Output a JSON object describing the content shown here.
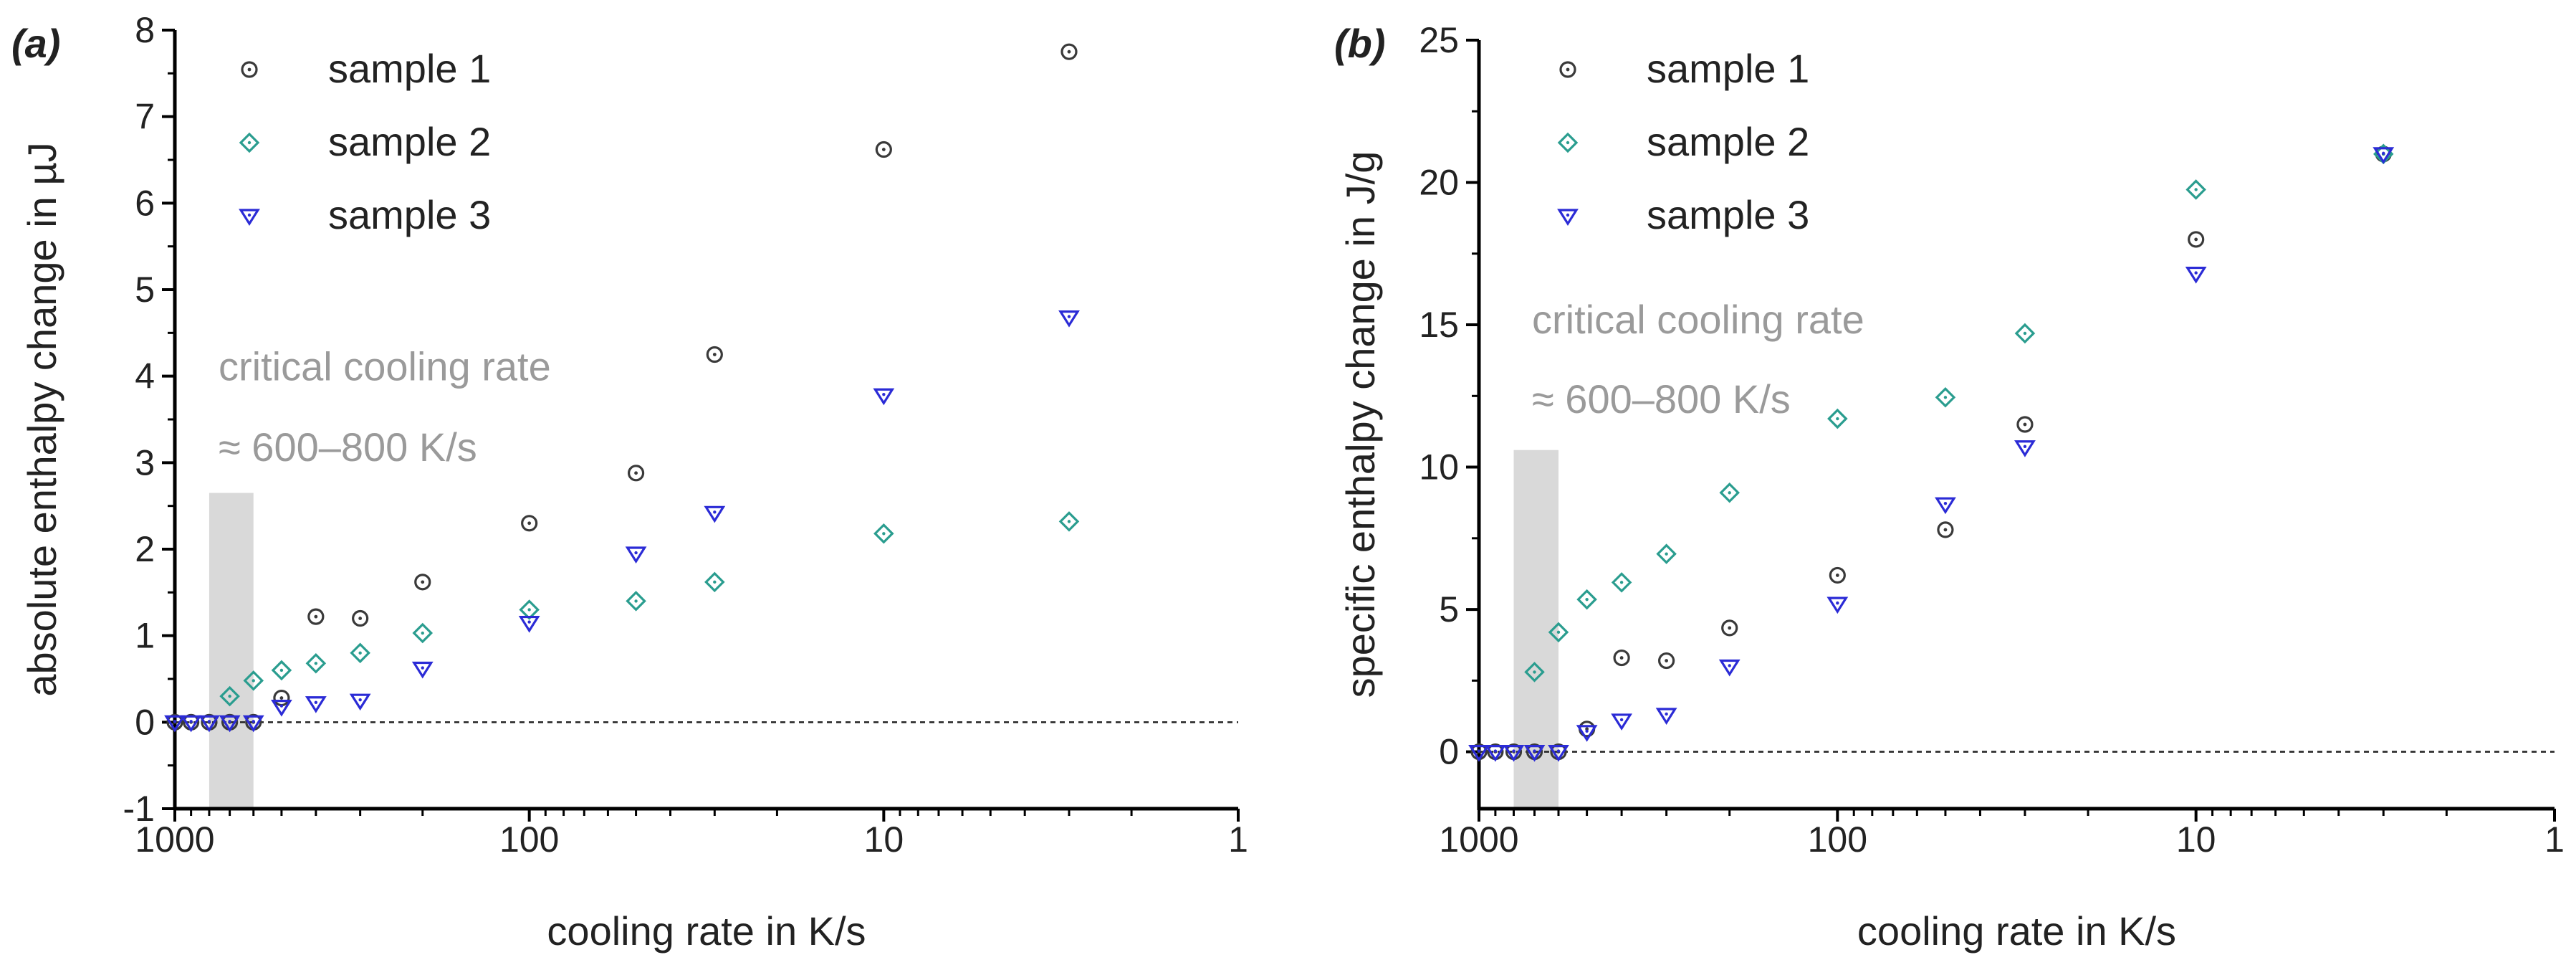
{
  "colors": {
    "sample_1": "#3a3a3a",
    "sample_2": "#2a9d8f",
    "sample_3": "#2b2bd6",
    "band": "#d9d9d9",
    "axis": "#000000",
    "annotation": "#9a9a9a"
  },
  "chart_data": [
    {
      "type": "scatter",
      "panel_label": "(a)",
      "xlabel": "cooling rate in K/s",
      "ylabel": "absolute enthalpy change in µJ",
      "x_scale": "log",
      "x_reversed": true,
      "xlim": [
        1000,
        1
      ],
      "ylim": [
        -1,
        8
      ],
      "x_ticks": [
        "1000",
        "100",
        "10",
        "1"
      ],
      "y_ticks": [
        "-1",
        "0",
        "1",
        "2",
        "3",
        "4",
        "5",
        "6",
        "7",
        "8"
      ],
      "grid": false,
      "legend_position": "top-left",
      "zero_line": true,
      "critical_band": [
        800,
        600
      ],
      "annotation_line1": "critical cooling rate",
      "annotation_line2": "≈ 600–800 K/s",
      "series": [
        {
          "name": "sample 1",
          "marker": "circle",
          "x": [
            1000,
            900,
            800,
            700,
            600,
            500,
            400,
            300,
            200,
            100,
            50,
            30,
            10,
            3
          ],
          "y": [
            0,
            0,
            0,
            0,
            0,
            0.28,
            1.22,
            1.2,
            1.62,
            2.3,
            2.88,
            4.25,
            6.62,
            7.75
          ]
        },
        {
          "name": "sample 2",
          "marker": "diamond",
          "x": [
            700,
            600,
            500,
            400,
            300,
            200,
            100,
            50,
            30,
            10,
            3
          ],
          "y": [
            0.3,
            0.48,
            0.6,
            0.68,
            0.8,
            1.03,
            1.3,
            1.4,
            1.62,
            2.18,
            2.32
          ]
        },
        {
          "name": "sample 3",
          "marker": "triangle-down",
          "x": [
            1000,
            900,
            800,
            700,
            600,
            500,
            400,
            300,
            200,
            100,
            50,
            30,
            10,
            3
          ],
          "y": [
            0,
            0,
            0,
            0,
            0,
            0.18,
            0.22,
            0.25,
            0.62,
            1.15,
            1.95,
            2.42,
            3.78,
            4.68
          ]
        }
      ]
    },
    {
      "type": "scatter",
      "panel_label": "(b)",
      "xlabel": "cooling rate in K/s",
      "ylabel": "specific enthalpy change  in J/g",
      "x_scale": "log",
      "x_reversed": true,
      "xlim": [
        1000,
        1
      ],
      "ylim": [
        -2,
        25
      ],
      "x_ticks": [
        "1000",
        "100",
        "10",
        "1"
      ],
      "y_ticks": [
        "0",
        "5",
        "10",
        "15",
        "20",
        "25"
      ],
      "grid": false,
      "legend_position": "top-left",
      "zero_line": true,
      "critical_band": [
        800,
        600
      ],
      "annotation_line1": "critical cooling rate",
      "annotation_line2": "≈ 600–800 K/s",
      "series": [
        {
          "name": "sample 1",
          "marker": "circle",
          "x": [
            1000,
            900,
            800,
            700,
            600,
            500,
            400,
            300,
            200,
            100,
            50,
            30,
            10,
            3
          ],
          "y": [
            0,
            0,
            0,
            0,
            0,
            0.8,
            3.3,
            3.2,
            4.35,
            6.2,
            7.8,
            11.5,
            18,
            21
          ]
        },
        {
          "name": "sample 2",
          "marker": "diamond",
          "x": [
            700,
            600,
            500,
            400,
            300,
            200,
            100,
            50,
            30,
            10,
            3
          ],
          "y": [
            2.8,
            4.2,
            5.35,
            5.95,
            6.95,
            9.1,
            11.7,
            12.45,
            14.7,
            19.75,
            21
          ]
        },
        {
          "name": "sample 3",
          "marker": "triangle-down",
          "x": [
            1000,
            900,
            800,
            700,
            600,
            500,
            400,
            300,
            200,
            100,
            50,
            30,
            10,
            3
          ],
          "y": [
            0,
            0,
            0,
            0,
            0,
            0.7,
            1.1,
            1.3,
            3.0,
            5.2,
            8.7,
            10.7,
            16.8,
            21
          ]
        }
      ]
    }
  ]
}
